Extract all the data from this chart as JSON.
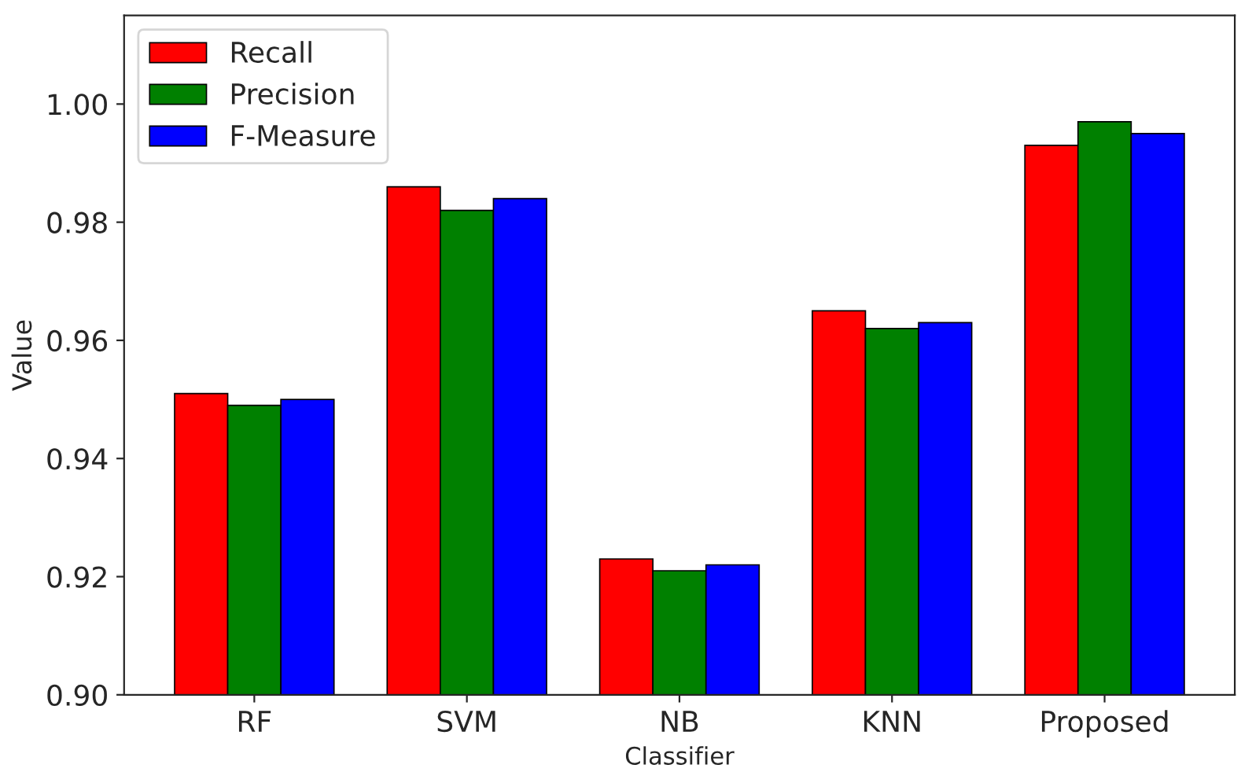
{
  "chart_data": {
    "type": "bar",
    "xlabel": "Classifier",
    "ylabel": "Value",
    "categories": [
      "RF",
      "SVM",
      "NB",
      "KNN",
      "Proposed"
    ],
    "series": [
      {
        "name": "Recall",
        "color": "#ff0000",
        "values": [
          0.951,
          0.986,
          0.923,
          0.965,
          0.993
        ]
      },
      {
        "name": "Precision",
        "color": "#008000",
        "values": [
          0.949,
          0.982,
          0.921,
          0.962,
          0.997
        ]
      },
      {
        "name": "F-Measure",
        "color": "#0000ff",
        "values": [
          0.95,
          0.984,
          0.922,
          0.963,
          0.995
        ]
      }
    ],
    "ylim": [
      0.9,
      1.015
    ],
    "yticks": [
      {
        "value": 0.9,
        "label": "0.90"
      },
      0.92,
      0.94,
      0.96,
      0.98,
      {
        "value": 1,
        "label": "1.00"
      }
    ],
    "legend": "top left",
    "grid": false
  }
}
